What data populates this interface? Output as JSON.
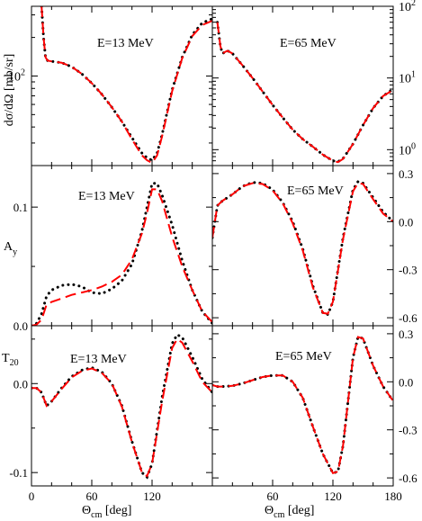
{
  "colors": {
    "dotted_series": "#000000",
    "dashed_series": "#ff0000",
    "frame": "#000000"
  },
  "chart_data": [
    {
      "type": "line",
      "id": "dsigma-13",
      "annotation": "E=13 MeV",
      "ylabel": "dσ/dΩ [mb/sr]",
      "xlim": [
        0,
        180
      ],
      "ylim": [
        20,
        350
      ],
      "yscale": "log",
      "ytick_labels": [
        {
          "value": 100,
          "base": "10",
          "exp": "2"
        }
      ],
      "series": [
        {
          "style": "dotted",
          "x": [
            10,
            12,
            14,
            16,
            20,
            30,
            40,
            50,
            60,
            70,
            80,
            90,
            100,
            110,
            115,
            120,
            125,
            130,
            140,
            150,
            160,
            170,
            180
          ],
          "y": [
            350,
            200,
            140,
            132,
            130,
            127,
            118,
            104,
            88,
            72,
            57,
            44,
            33,
            25,
            23,
            22,
            25,
            35,
            78,
            140,
            210,
            260,
            280
          ]
        },
        {
          "style": "dashed",
          "x": [
            10,
            12,
            14,
            16,
            20,
            30,
            40,
            50,
            60,
            70,
            80,
            90,
            100,
            110,
            115,
            120,
            125,
            130,
            140,
            150,
            160,
            170,
            180
          ],
          "y": [
            350,
            200,
            140,
            132,
            130,
            127,
            118,
            104,
            88,
            72,
            57,
            44,
            32,
            24,
            22,
            21,
            24,
            34,
            76,
            138,
            205,
            250,
            270
          ]
        }
      ]
    },
    {
      "type": "line",
      "id": "dsigma-65",
      "annotation": "E=65 MeV",
      "xlim": [
        0,
        180
      ],
      "ylim": [
        0.6,
        100
      ],
      "yscale": "log",
      "ytick_labels": [
        {
          "value": 1,
          "base": "10",
          "exp": "0"
        },
        {
          "value": 10,
          "base": "10",
          "exp": "1"
        },
        {
          "value": 100,
          "base": "10",
          "exp": "2"
        }
      ],
      "series": [
        {
          "style": "dotted",
          "x": [
            5,
            8,
            10,
            15,
            20,
            30,
            40,
            50,
            60,
            70,
            80,
            90,
            100,
            110,
            120,
            125,
            130,
            140,
            150,
            160,
            170,
            180
          ],
          "y": [
            60,
            28,
            22,
            24,
            22,
            15,
            10,
            6.5,
            4.2,
            2.8,
            1.9,
            1.4,
            1.1,
            0.85,
            0.7,
            0.68,
            0.75,
            1.2,
            2.2,
            3.8,
            5.6,
            7.0
          ]
        },
        {
          "style": "dashed",
          "x": [
            5,
            8,
            10,
            15,
            20,
            30,
            40,
            50,
            60,
            70,
            80,
            90,
            100,
            110,
            120,
            125,
            130,
            140,
            150,
            160,
            170,
            180
          ],
          "y": [
            60,
            28,
            22,
            24,
            22,
            15,
            10,
            6.5,
            4.2,
            2.8,
            1.9,
            1.4,
            1.1,
            0.85,
            0.7,
            0.67,
            0.74,
            1.2,
            2.2,
            3.8,
            5.6,
            6.8
          ]
        }
      ]
    },
    {
      "type": "line",
      "id": "ay-13",
      "annotation": "E=13 MeV",
      "ylabel": "A_y",
      "xlim": [
        0,
        180
      ],
      "ylim": [
        0,
        0.135
      ],
      "yticks": [
        0,
        0.1
      ],
      "ytick_labels": [
        "0.0",
        "0.1"
      ],
      "series": [
        {
          "style": "dotted",
          "x": [
            0,
            5,
            10,
            15,
            20,
            30,
            40,
            50,
            60,
            70,
            80,
            90,
            100,
            110,
            115,
            120,
            125,
            130,
            140,
            150,
            160,
            170,
            180
          ],
          "y": [
            0,
            0.002,
            0.01,
            0.025,
            0.03,
            0.034,
            0.035,
            0.033,
            0.028,
            0.027,
            0.031,
            0.038,
            0.052,
            0.08,
            0.1,
            0.12,
            0.12,
            0.11,
            0.085,
            0.055,
            0.03,
            0.012,
            0.002
          ]
        },
        {
          "style": "dashed",
          "x": [
            0,
            5,
            10,
            15,
            20,
            30,
            40,
            50,
            60,
            70,
            80,
            90,
            100,
            110,
            115,
            120,
            125,
            130,
            140,
            150,
            160,
            170,
            180
          ],
          "y": [
            0,
            0.001,
            0.005,
            0.018,
            0.02,
            0.023,
            0.026,
            0.028,
            0.03,
            0.033,
            0.037,
            0.043,
            0.056,
            0.078,
            0.095,
            0.115,
            0.115,
            0.105,
            0.075,
            0.05,
            0.03,
            0.012,
            0.003
          ]
        }
      ]
    },
    {
      "type": "line",
      "id": "ay-65",
      "annotation": "E=65 MeV",
      "xlim": [
        0,
        180
      ],
      "ylim": [
        -0.65,
        0.35
      ],
      "yticks": [
        -0.6,
        -0.3,
        0,
        0.3
      ],
      "ytick_labels": [
        "-0.6",
        "-0.3",
        "0.0",
        "0.3"
      ],
      "series": [
        {
          "style": "dotted",
          "x": [
            0,
            5,
            10,
            20,
            30,
            40,
            50,
            60,
            70,
            80,
            90,
            100,
            110,
            115,
            120,
            130,
            140,
            145,
            150,
            160,
            170,
            180
          ],
          "y": [
            -0.1,
            0.1,
            0.13,
            0.17,
            0.22,
            0.245,
            0.24,
            0.2,
            0.12,
            0.0,
            -0.17,
            -0.4,
            -0.57,
            -0.58,
            -0.5,
            -0.1,
            0.2,
            0.25,
            0.24,
            0.15,
            0.06,
            0.0
          ]
        },
        {
          "style": "dashed",
          "x": [
            0,
            5,
            10,
            20,
            30,
            40,
            50,
            60,
            70,
            80,
            90,
            100,
            110,
            115,
            120,
            130,
            140,
            145,
            150,
            160,
            170,
            180
          ],
          "y": [
            -0.1,
            0.1,
            0.13,
            0.17,
            0.22,
            0.24,
            0.235,
            0.195,
            0.115,
            -0.01,
            -0.18,
            -0.41,
            -0.57,
            -0.575,
            -0.5,
            -0.11,
            0.19,
            0.24,
            0.235,
            0.14,
            0.05,
            0.0
          ]
        }
      ]
    },
    {
      "type": "line",
      "id": "t20-13",
      "annotation": "E=13 MeV",
      "ylabel": "T_20",
      "xlabel": "Θ_cm [deg]",
      "xlim": [
        0,
        180
      ],
      "ylim": [
        -0.115,
        0.065
      ],
      "xticks": [
        0,
        60,
        120
      ],
      "xtick_labels": [
        "0",
        "60",
        "120"
      ],
      "yticks": [
        -0.1,
        0
      ],
      "ytick_labels": [
        "-0.1",
        "0.0"
      ],
      "series": [
        {
          "style": "dotted",
          "x": [
            0,
            5,
            10,
            15,
            20,
            30,
            40,
            50,
            60,
            70,
            80,
            90,
            100,
            110,
            115,
            120,
            130,
            140,
            145,
            150,
            160,
            170,
            180
          ],
          "y": [
            -0.005,
            -0.005,
            -0.01,
            -0.025,
            -0.02,
            -0.005,
            0.008,
            0.015,
            0.018,
            0.013,
            0.0,
            -0.025,
            -0.065,
            -0.1,
            -0.105,
            -0.09,
            -0.015,
            0.045,
            0.055,
            0.052,
            0.03,
            0.005,
            -0.01
          ]
        },
        {
          "style": "dashed",
          "x": [
            0,
            5,
            10,
            15,
            20,
            30,
            40,
            50,
            60,
            70,
            80,
            90,
            100,
            110,
            115,
            120,
            130,
            140,
            145,
            150,
            160,
            170,
            180
          ],
          "y": [
            -0.005,
            -0.005,
            -0.01,
            -0.025,
            -0.02,
            -0.006,
            0.007,
            0.014,
            0.017,
            0.012,
            0.0,
            -0.026,
            -0.066,
            -0.1,
            -0.104,
            -0.09,
            -0.02,
            0.04,
            0.05,
            0.046,
            0.025,
            0.002,
            -0.01
          ]
        }
      ]
    },
    {
      "type": "line",
      "id": "t20-65",
      "annotation": "E=65 MeV",
      "xlabel": "Θ_cm [deg]",
      "xlim": [
        0,
        180
      ],
      "ylim": [
        -0.65,
        0.35
      ],
      "xticks": [
        60,
        120,
        180
      ],
      "xtick_labels": [
        "60",
        "120",
        "180"
      ],
      "yticks": [
        -0.6,
        -0.3,
        0,
        0.3
      ],
      "ytick_labels": [
        "-0.6",
        "-0.3",
        "0.0",
        "0.3"
      ],
      "series": [
        {
          "style": "dotted",
          "x": [
            0,
            5,
            10,
            20,
            30,
            40,
            50,
            60,
            70,
            80,
            90,
            100,
            110,
            120,
            125,
            130,
            140,
            145,
            150,
            160,
            170,
            180
          ],
          "y": [
            -0.02,
            -0.03,
            -0.03,
            -0.025,
            -0.01,
            0.01,
            0.03,
            0.04,
            0.04,
            0.0,
            -0.1,
            -0.28,
            -0.45,
            -0.57,
            -0.56,
            -0.4,
            0.15,
            0.28,
            0.27,
            0.1,
            -0.03,
            -0.12
          ]
        },
        {
          "style": "dashed",
          "x": [
            0,
            5,
            10,
            20,
            30,
            40,
            50,
            60,
            70,
            80,
            90,
            100,
            110,
            120,
            125,
            130,
            140,
            145,
            150,
            160,
            170,
            180
          ],
          "y": [
            -0.02,
            -0.03,
            -0.03,
            -0.025,
            -0.01,
            0.01,
            0.03,
            0.04,
            0.04,
            0.0,
            -0.1,
            -0.28,
            -0.45,
            -0.57,
            -0.56,
            -0.4,
            0.15,
            0.28,
            0.27,
            0.1,
            -0.03,
            -0.12
          ]
        }
      ]
    }
  ]
}
